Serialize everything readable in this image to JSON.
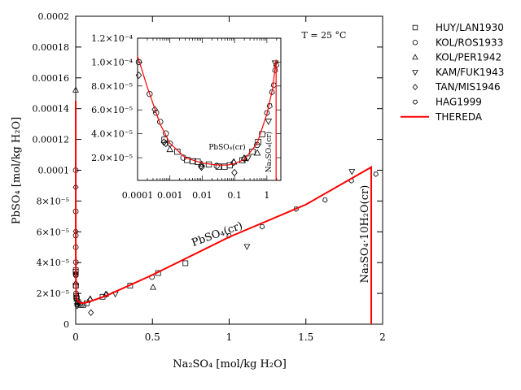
{
  "chart_data": [
    {
      "id": "main",
      "type": "scatter",
      "xlabel": "Na₂SO₄ [mol/kg H₂O]",
      "ylabel": "PbSO₄ [mol/kg H₂O]",
      "xlim": [
        0,
        2
      ],
      "ylim": [
        0,
        0.0002
      ],
      "xticks": [
        {
          "v": 0,
          "label": "0"
        },
        {
          "v": 0.5,
          "label": "0.5"
        },
        {
          "v": 1,
          "label": "1"
        },
        {
          "v": 1.5,
          "label": "1.5"
        },
        {
          "v": 2,
          "label": "2"
        }
      ],
      "yticks": [
        {
          "v": 0,
          "label": "0"
        },
        {
          "v": 2e-05,
          "label": "2×10⁻⁵"
        },
        {
          "v": 4e-05,
          "label": "4×10⁻⁵"
        },
        {
          "v": 6e-05,
          "label": "6×10⁻⁵"
        },
        {
          "v": 8e-05,
          "label": "8×10⁻⁵"
        },
        {
          "v": 0.0001,
          "label": "0.0001"
        },
        {
          "v": 0.00012,
          "label": "0.00012"
        },
        {
          "v": 0.00014,
          "label": "0.00014"
        },
        {
          "v": 0.00016,
          "label": "0.00016"
        },
        {
          "v": 0.00018,
          "label": "0.00018"
        },
        {
          "v": 0.0002,
          "label": "0.0002"
        }
      ],
      "annotations": {
        "temperature": "T = 25 °C",
        "pbso4_field": "PbSO₄(cr)",
        "na2so4_hydrate_field": "Na₂SO₄·10H₂O(cr)"
      },
      "grid": false,
      "legend_placement": "outside-right"
    },
    {
      "id": "inset",
      "type": "scatter",
      "xscale": "log",
      "xlim": [
        0.0001,
        2.7
      ],
      "ylim": [
        1e-06,
        0.00012
      ],
      "xticks": [
        {
          "v": 0.0001,
          "label": "0.0001"
        },
        {
          "v": 0.001,
          "label": "0.001"
        },
        {
          "v": 0.01,
          "label": "0.01"
        },
        {
          "v": 0.1,
          "label": "0.1"
        },
        {
          "v": 1,
          "label": "1"
        }
      ],
      "yticks": [
        {
          "v": 2e-05,
          "label": "2.0×10⁻⁵"
        },
        {
          "v": 4e-05,
          "label": "4.0×10⁻⁵"
        },
        {
          "v": 6e-05,
          "label": "6.0×10⁻⁵"
        },
        {
          "v": 8e-05,
          "label": "8.0×10⁻⁵"
        },
        {
          "v": 0.0001,
          "label": "1.0×10⁻⁴"
        },
        {
          "v": 0.00012,
          "label": "1.2×10⁻⁴"
        }
      ],
      "annotations": {
        "pbso4_field": "PbSO₄(cr)",
        "na2so4_field": "Na₂SO₄(cr)"
      },
      "grid": false
    }
  ],
  "series": [
    {
      "name": "HUY/LAN1930",
      "marker": "square",
      "points": [
        [
          0,
          3.4e-05
        ],
        [
          0,
          2.5e-05
        ],
        [
          0.00068,
          3.5e-05
        ],
        [
          0.0017,
          2.5e-05
        ],
        [
          0.0034,
          1.81e-05
        ],
        [
          0.0051,
          1.7e-05
        ],
        [
          0.0072,
          1.66e-05
        ],
        [
          0.016,
          1.43e-05
        ],
        [
          0.032,
          1.25e-05
        ],
        [
          0.049,
          1.25e-05
        ],
        [
          0.071,
          1.36e-05
        ],
        [
          0.175,
          1.78e-05
        ],
        [
          0.355,
          2.5e-05
        ],
        [
          0.537,
          3.32e-05
        ],
        [
          0.715,
          3.96e-05
        ]
      ]
    },
    {
      "name": "KOL/ROS1933",
      "marker": "circle",
      "points": [
        [
          0.000109,
          0.0001
        ],
        [
          0.000236,
          7.33e-05
        ],
        [
          0.000375,
          5.76e-05
        ],
        [
          0.0005,
          5e-05
        ],
        [
          0.00075,
          4.03e-05
        ],
        [
          0.001,
          3.18e-05
        ],
        [
          0.0026,
          2e-05
        ],
        [
          0.028,
          1.32e-05
        ],
        [
          0.497,
          3.06e-05
        ]
      ]
    },
    {
      "name": "KOL/PER1942",
      "marker": "triangle-up",
      "points": [
        [
          0,
          0.000152
        ],
        [
          0.001,
          2.68e-05
        ],
        [
          0.0096,
          1.45e-05
        ],
        [
          0.095,
          1.64e-05
        ],
        [
          0.196,
          1.94e-05
        ],
        [
          0.504,
          2.39e-05
        ]
      ]
    },
    {
      "name": "KAM/FUK1943",
      "marker": "triangle-down",
      "points": [
        [
          0.258,
          1.97e-05
        ],
        [
          1.116,
          5.05e-05
        ],
        [
          1.8,
          9.92e-05
        ]
      ]
    },
    {
      "name": "TAN/MIS1946",
      "marker": "diamond",
      "points": [
        [
          0.000109,
          8.9e-05
        ],
        [
          0.00034,
          6.03e-05
        ],
        [
          0.00065,
          3.3e-05
        ],
        [
          0.00075,
          3.18e-05
        ],
        [
          0.0092,
          1.3e-05
        ],
        [
          0.0095,
          1.2e-05
        ],
        [
          0.093,
          1.59e-05
        ],
        [
          0.099,
          7.5e-06
        ],
        [
          0.2,
          1.93e-05
        ]
      ]
    },
    {
      "name": "HAG1999",
      "marker": "pentagon",
      "points": [
        [
          1.0,
          5.75e-05
        ],
        [
          1.215,
          6.33e-05
        ],
        [
          1.436,
          7.48e-05
        ],
        [
          1.625,
          8.07e-05
        ],
        [
          1.797,
          9.32e-05
        ],
        [
          1.956,
          9.75e-05
        ]
      ]
    },
    {
      "name": "THEREDA",
      "marker": "line",
      "color": "#ff0000",
      "points": [
        [
          2e-05,
          0.000145
        ],
        [
          0.0001,
          0.000105
        ],
        [
          0.0002,
          7.9e-05
        ],
        [
          0.0005,
          4.8e-05
        ],
        [
          0.001,
          3.2e-05
        ],
        [
          0.003,
          2e-05
        ],
        [
          0.01,
          1.55e-05
        ],
        [
          0.03,
          1.38e-05
        ],
        [
          0.06,
          1.38e-05
        ],
        [
          0.1,
          1.5e-05
        ],
        [
          0.2,
          1.85e-05
        ],
        [
          0.5,
          3.2e-05
        ],
        [
          1.0,
          5.66e-05
        ],
        [
          1.5,
          7.77e-05
        ],
        [
          1.926,
          0.000102
        ]
      ],
      "saturation_limit_x": 1.926
    }
  ]
}
